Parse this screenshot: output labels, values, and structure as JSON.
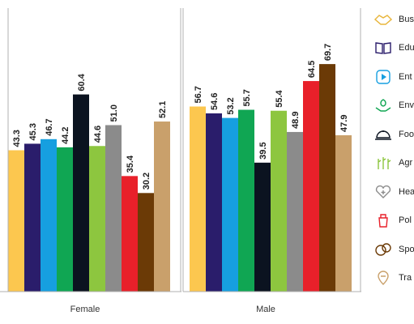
{
  "chart_data": {
    "type": "bar",
    "title": "",
    "xlabel": "",
    "ylabel": "",
    "ylim": [
      0,
      80
    ],
    "categories": [
      "Female",
      "Male"
    ],
    "series": [
      {
        "name": "Bus",
        "values": [
          43.3,
          56.7
        ],
        "color": "#fcc74f"
      },
      {
        "name": "Edu",
        "values": [
          45.3,
          54.6
        ],
        "color": "#2a1d6b"
      },
      {
        "name": "Ent",
        "values": [
          46.7,
          53.2
        ],
        "color": "#169fe0"
      },
      {
        "name": "Env",
        "values": [
          44.2,
          55.7
        ],
        "color": "#10a653"
      },
      {
        "name": "Foo",
        "values": [
          60.4,
          39.5
        ],
        "color": "#0b1320"
      },
      {
        "name": "Agr",
        "values": [
          44.6,
          55.4
        ],
        "color": "#8dc63f"
      },
      {
        "name": "Hea",
        "values": [
          51.0,
          48.9
        ],
        "color": "#8b8b8b"
      },
      {
        "name": "Pol",
        "values": [
          35.4,
          64.5
        ],
        "color": "#e8202a"
      },
      {
        "name": "Spo",
        "values": [
          30.2,
          69.7
        ],
        "color": "#6b3a06"
      },
      {
        "name": "Tra",
        "values": [
          52.1,
          47.9
        ],
        "color": "#c9a06b"
      }
    ]
  },
  "legend": {
    "items": [
      {
        "label": "Bus",
        "icon": "handshake-icon",
        "icon_color": "#e8b53a"
      },
      {
        "label": "Edu",
        "icon": "book-icon",
        "icon_color": "#2a1d6b"
      },
      {
        "label": "Ent",
        "icon": "play-icon",
        "icon_color": "#169fe0"
      },
      {
        "label": "Env",
        "icon": "leaf-hands-icon",
        "icon_color": "#10a653"
      },
      {
        "label": "Foo",
        "icon": "food-tray-icon",
        "icon_color": "#0b1320"
      },
      {
        "label": "Agr",
        "icon": "crop-icon",
        "icon_color": "#8dc63f"
      },
      {
        "label": "Hea",
        "icon": "heart-plus-icon",
        "icon_color": "#8b8b8b"
      },
      {
        "label": "Pol",
        "icon": "podium-icon",
        "icon_color": "#e8202a"
      },
      {
        "label": "Spo",
        "icon": "balls-icon",
        "icon_color": "#6b3a06"
      },
      {
        "label": "Tra",
        "icon": "plane-pin-icon",
        "icon_color": "#c9a06b"
      }
    ]
  }
}
